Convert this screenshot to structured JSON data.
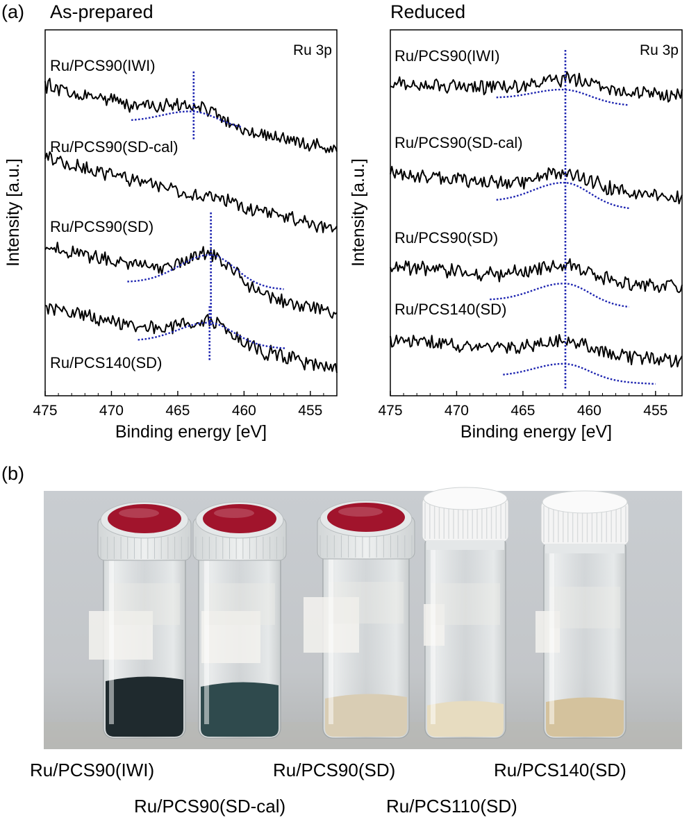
{
  "panel_a_label": "(a)",
  "panel_b_label": "(b)",
  "chart_data": [
    {
      "type": "line",
      "title": "As-prepared",
      "corner_label": "Ru 3p",
      "xlabel": "Binding energy [eV]",
      "ylabel": "Intensity [a.u.]",
      "xlim": [
        475,
        453
      ],
      "xticks": [
        475,
        470,
        465,
        460,
        455
      ],
      "x_reversed": true,
      "grid": false,
      "fit_peak_eV": [
        463.8,
        462.5,
        462.6
      ],
      "series": [
        {
          "name": "Ru/PCS90(IWI)",
          "peak_eV": 463.8
        },
        {
          "name": "Ru/PCS90(SD-cal)"
        },
        {
          "name": "Ru/PCS90(SD)",
          "peak_eV": 462.5
        },
        {
          "name": "Ru/PCS140(SD)",
          "peak_eV": 462.6
        }
      ]
    },
    {
      "type": "line",
      "title": "Reduced",
      "corner_label": "Ru 3p",
      "xlabel": "Binding energy [eV]",
      "ylabel": "Intensity [a.u.]",
      "xlim": [
        475,
        453
      ],
      "xticks": [
        475,
        470,
        465,
        460,
        455
      ],
      "x_reversed": true,
      "grid": false,
      "fit_peak_eV": [
        461.8
      ],
      "series": [
        {
          "name": "Ru/PCS90(IWI)",
          "peak_eV": 461.8
        },
        {
          "name": "Ru/PCS90(SD-cal)",
          "peak_eV": 461.8
        },
        {
          "name": "Ru/PCS90(SD)",
          "peak_eV": 461.8
        },
        {
          "name": "Ru/PCS140(SD)",
          "peak_eV": 461.8
        }
      ]
    }
  ],
  "photo": {
    "vials": [
      {
        "label": "Ru/PCS90(IWI)",
        "cap": "#a1142c",
        "powder": "#1f2a2e"
      },
      {
        "label": "Ru/PCS90(SD-cal)",
        "cap": "#a1142c",
        "powder": "#2f4a4d"
      },
      {
        "label": "Ru/PCS90(SD)",
        "cap": "#a1142c",
        "powder": "#d9cdb4"
      },
      {
        "label": "Ru/PCS110(SD)",
        "cap": "#f4f4f4",
        "powder": "#e7dcc0"
      },
      {
        "label": "Ru/PCS140(SD)",
        "cap": "#f4f4f4",
        "powder": "#d4c29d"
      }
    ]
  }
}
